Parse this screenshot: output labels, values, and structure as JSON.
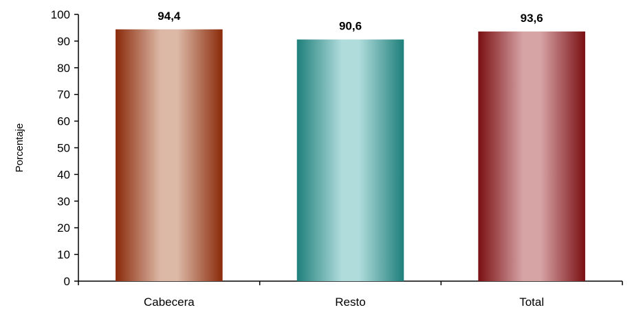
{
  "chart_data": {
    "type": "bar",
    "title": "",
    "xlabel": "",
    "ylabel": "Porcentaje",
    "ylim": [
      0,
      100
    ],
    "yticks": [
      0,
      10,
      20,
      30,
      40,
      50,
      60,
      70,
      80,
      90,
      100
    ],
    "grid": false,
    "legend": "none",
    "categories": [
      "Cabecera",
      "Resto",
      "Total"
    ],
    "values": [
      94.4,
      90.6,
      93.6
    ],
    "data_labels": [
      "94,4",
      "90,6",
      "93,6"
    ],
    "colors": [
      {
        "edge": "#8a2a0a",
        "center": "#dcb8a6"
      },
      {
        "edge": "#1e7f7a",
        "center": "#b0dcdc"
      },
      {
        "edge": "#7a0f12",
        "center": "#d7a4a6"
      }
    ]
  }
}
